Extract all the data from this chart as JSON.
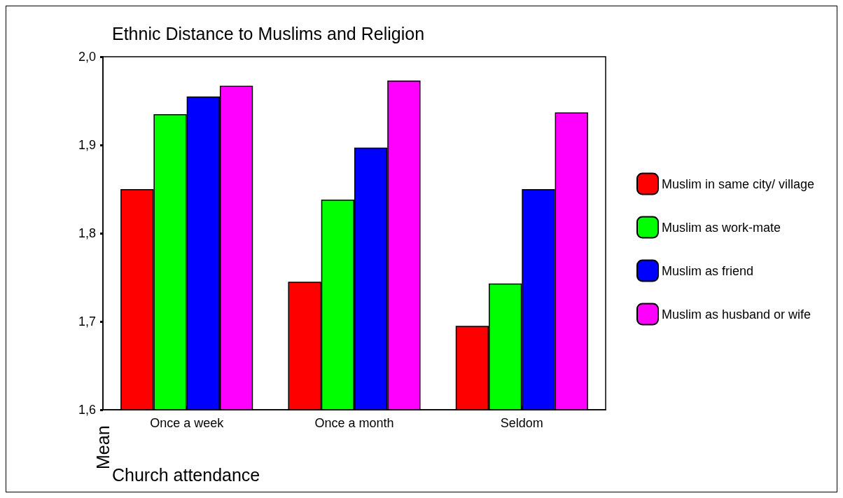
{
  "chart_data": {
    "type": "bar",
    "title": "Ethnic Distance to Muslims and Religion",
    "xlabel": "Church attendance",
    "ylabel": "Mean",
    "categories": [
      "Once a week",
      "Once a month",
      "Seldom"
    ],
    "series": [
      {
        "name": "Muslim in same city/ village",
        "color": "#ff0000",
        "values": [
          1.85,
          1.745,
          1.695
        ]
      },
      {
        "name": "Muslim as work-mate",
        "color": "#00ff00",
        "values": [
          1.935,
          1.838,
          1.743
        ]
      },
      {
        "name": "Muslim as friend",
        "color": "#0000ff",
        "values": [
          1.955,
          1.897,
          1.85
        ]
      },
      {
        "name": "Muslim as husband or wife",
        "color": "#ff00ff",
        "values": [
          1.967,
          1.973,
          1.937
        ]
      }
    ],
    "ylim": [
      1.6,
      2.0
    ],
    "yticks": [
      {
        "value": 1.6,
        "label": "1,6"
      },
      {
        "value": 1.7,
        "label": "1,7"
      },
      {
        "value": 1.8,
        "label": "1,8"
      },
      {
        "value": 1.9,
        "label": "1,9"
      },
      {
        "value": 2.0,
        "label": "2,0"
      }
    ],
    "grid": false,
    "legend": "right"
  }
}
